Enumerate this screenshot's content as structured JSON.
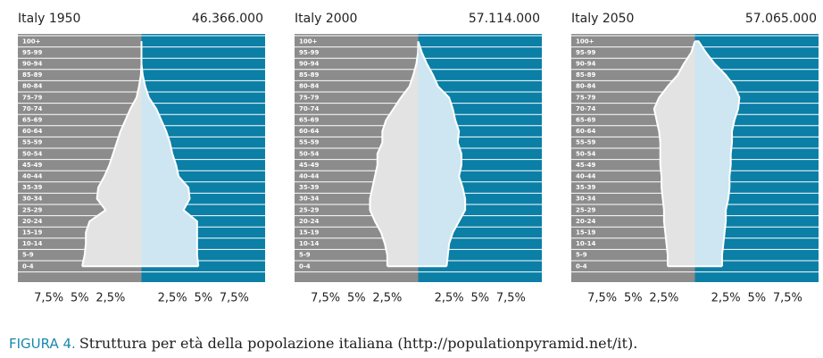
{
  "chart_data": [
    {
      "type": "pyramid",
      "title": "Italy 1950",
      "subtitle": "46.366.000",
      "categories": [
        "0-4",
        "5-9",
        "10-14",
        "15-19",
        "20-24",
        "25-29",
        "30-34",
        "35-39",
        "40-44",
        "45-49",
        "50-54",
        "55-59",
        "60-64",
        "65-69",
        "70-74",
        "75-79",
        "80-84",
        "85-89",
        "90-94",
        "95-99",
        "100+"
      ],
      "series": [
        {
          "color": "#e3e3e3",
          "values": [
            4.8,
            4.6,
            4.5,
            4.5,
            4.2,
            2.9,
            3.6,
            3.5,
            3.0,
            2.6,
            2.3,
            2.0,
            1.7,
            1.3,
            0.9,
            0.4,
            0.2,
            0.05,
            0,
            0,
            0
          ]
        },
        {
          "color": "#cde6f1",
          "values": [
            4.6,
            4.5,
            4.5,
            4.5,
            4.5,
            3.4,
            3.9,
            3.8,
            3.0,
            2.8,
            2.5,
            2.3,
            2.0,
            1.6,
            1.2,
            0.6,
            0.3,
            0.1,
            0,
            0,
            0
          ]
        }
      ],
      "xlim": [
        -10,
        10
      ],
      "xticks": [
        {
          "value": -7.5,
          "label": "7,5%"
        },
        {
          "value": -5,
          "label": "5%"
        },
        {
          "value": -2.5,
          "label": "2,5%"
        },
        {
          "value": 2.5,
          "label": "2,5%"
        },
        {
          "value": 5,
          "label": "5%"
        },
        {
          "value": 7.5,
          "label": "7,5%"
        }
      ]
    },
    {
      "type": "pyramid",
      "title": "Italy 2000",
      "subtitle": "57.114.000",
      "categories": [
        "0-4",
        "5-9",
        "10-14",
        "15-19",
        "20-24",
        "25-29",
        "30-34",
        "35-39",
        "40-44",
        "45-49",
        "50-54",
        "55-59",
        "60-64",
        "65-69",
        "70-74",
        "75-79",
        "80-84",
        "85-89",
        "90-94",
        "95-99",
        "100+"
      ],
      "series": [
        {
          "color": "#e3e3e3",
          "values": [
            2.5,
            2.5,
            2.7,
            3.0,
            3.5,
            3.9,
            3.9,
            3.7,
            3.5,
            3.3,
            3.3,
            2.9,
            2.9,
            2.6,
            2.0,
            1.4,
            0.7,
            0.4,
            0.15,
            0.02,
            0
          ]
        },
        {
          "color": "#cde6f1",
          "values": [
            2.3,
            2.4,
            2.5,
            2.8,
            3.3,
            3.8,
            3.8,
            3.6,
            3.3,
            3.5,
            3.5,
            3.2,
            3.3,
            3.0,
            2.8,
            2.5,
            1.6,
            1.2,
            0.7,
            0.3,
            0
          ]
        }
      ],
      "xlim": [
        -10,
        10
      ],
      "xticks": [
        {
          "value": -7.5,
          "label": "7,5%"
        },
        {
          "value": -5,
          "label": "5%"
        },
        {
          "value": -2.5,
          "label": "2,5%"
        },
        {
          "value": 2.5,
          "label": "2,5%"
        },
        {
          "value": 5,
          "label": "5%"
        },
        {
          "value": 7.5,
          "label": "7,5%"
        }
      ]
    },
    {
      "type": "pyramid",
      "title": "Italy 2050",
      "subtitle": "57.065.000",
      "categories": [
        "0-4",
        "5-9",
        "10-14",
        "15-19",
        "20-24",
        "25-29",
        "30-34",
        "35-39",
        "40-44",
        "45-49",
        "50-54",
        "55-59",
        "60-64",
        "65-69",
        "70-74",
        "75-79",
        "80-84",
        "85-89",
        "90-94",
        "95-99",
        "100+"
      ],
      "series": [
        {
          "color": "#e3e3e3",
          "values": [
            2.2,
            2.2,
            2.3,
            2.4,
            2.5,
            2.5,
            2.6,
            2.7,
            2.7,
            2.8,
            2.8,
            2.8,
            2.9,
            3.1,
            3.3,
            2.9,
            2.2,
            1.4,
            0.9,
            0.3,
            0
          ]
        },
        {
          "color": "#cde6f1",
          "values": [
            2.2,
            2.2,
            2.3,
            2.4,
            2.5,
            2.5,
            2.7,
            2.8,
            2.8,
            2.9,
            2.9,
            3.0,
            3.0,
            3.2,
            3.5,
            3.6,
            3.2,
            2.5,
            1.6,
            0.9,
            0.3
          ]
        }
      ],
      "xlim": [
        -10,
        10
      ],
      "xticks": [
        {
          "value": -7.5,
          "label": "7,5%"
        },
        {
          "value": -5,
          "label": "5%"
        },
        {
          "value": -2.5,
          "label": "2,5%"
        },
        {
          "value": 2.5,
          "label": "2,5%"
        },
        {
          "value": 5,
          "label": "5%"
        },
        {
          "value": 7.5,
          "label": "7,5%"
        }
      ]
    }
  ],
  "caption": {
    "label": "FIGURA 4.",
    "text": "Struttura per età della popolazione italiana (http://populationpyramid.net/it)."
  }
}
